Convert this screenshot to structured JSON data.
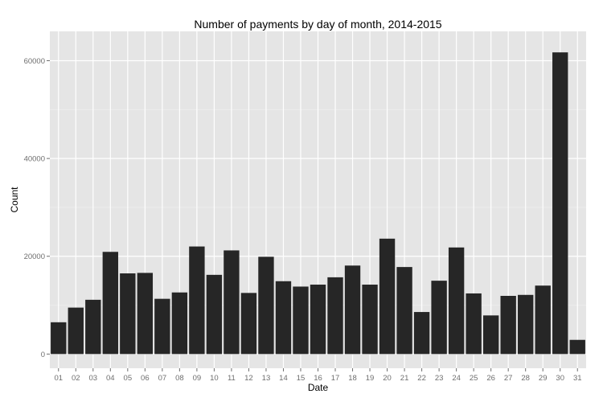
{
  "chart_data": {
    "type": "bar",
    "title": "Number of payments by day of month, 2014-2015",
    "xlabel": "Date",
    "ylabel": "Count",
    "categories": [
      "01",
      "02",
      "03",
      "04",
      "05",
      "06",
      "07",
      "08",
      "09",
      "10",
      "11",
      "12",
      "13",
      "14",
      "15",
      "16",
      "17",
      "18",
      "19",
      "20",
      "21",
      "22",
      "23",
      "24",
      "25",
      "26",
      "27",
      "28",
      "29",
      "30",
      "31"
    ],
    "values": [
      6500,
      9500,
      11100,
      20900,
      16500,
      16600,
      11300,
      12600,
      22000,
      16200,
      21200,
      12500,
      19900,
      14900,
      13800,
      14200,
      15700,
      18100,
      14200,
      23600,
      17800,
      8600,
      15000,
      21800,
      12400,
      7900,
      11900,
      12100,
      14000,
      61700,
      2900
    ],
    "ylim": [
      -2900,
      66000
    ],
    "yticks": [
      0,
      20000,
      40000,
      60000
    ],
    "ytick_labels": [
      "0",
      "20000",
      "40000",
      "60000"
    ],
    "grid": true,
    "colors": {
      "panel": "#e5e5e5",
      "grid_major": "#ffffff",
      "grid_minor": "#f0f0f0",
      "bar": "#262626",
      "tick": "#6e6e6e"
    }
  }
}
